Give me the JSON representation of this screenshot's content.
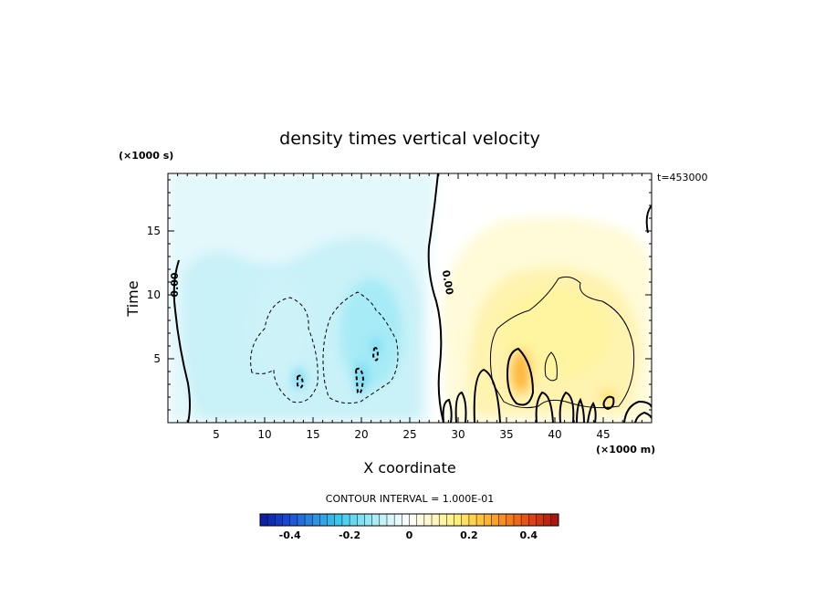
{
  "chart_data": {
    "type": "heatmap",
    "title": "density times vertical velocity",
    "xlabel": "X coordinate",
    "ylabel": "Time",
    "x_unit": "(×1000 m)",
    "y_unit": "(×1000 s)",
    "time_stamp": "t=453000",
    "xlim": [
      0,
      50
    ],
    "ylim": [
      0,
      19.5
    ],
    "x_ticks": [
      "5",
      "10",
      "15",
      "20",
      "25",
      "30",
      "35",
      "40",
      "45"
    ],
    "y_ticks": [
      "5",
      "10",
      "15"
    ],
    "contour_interval_text": "CONTOUR INTERVAL = 1.000E-01",
    "contour_labels": [
      "0.00",
      "0.00"
    ],
    "colorbar": {
      "range": [
        -0.5,
        0.5
      ],
      "tick_labels": [
        "-0.4",
        "-0.2",
        "0",
        "0.2",
        "0.4"
      ],
      "tick_values": [
        -0.4,
        -0.2,
        0,
        0.2,
        0.4
      ]
    },
    "features": [
      {
        "x": 11.5,
        "y": 7.5,
        "value": -0.08
      },
      {
        "x": 21.0,
        "y": 7.0,
        "value": -0.12
      },
      {
        "x": 13.5,
        "y": 3.5,
        "value": -0.21
      },
      {
        "x": 20.0,
        "y": 3.5,
        "value": -0.21
      },
      {
        "x": 21.5,
        "y": 6.0,
        "value": -0.2
      },
      {
        "x": 40.0,
        "y": 7.0,
        "value": 0.12
      },
      {
        "x": 36.5,
        "y": 4.0,
        "value": 0.26
      },
      {
        "x": 45.5,
        "y": 2.0,
        "value": 0.2
      }
    ]
  }
}
